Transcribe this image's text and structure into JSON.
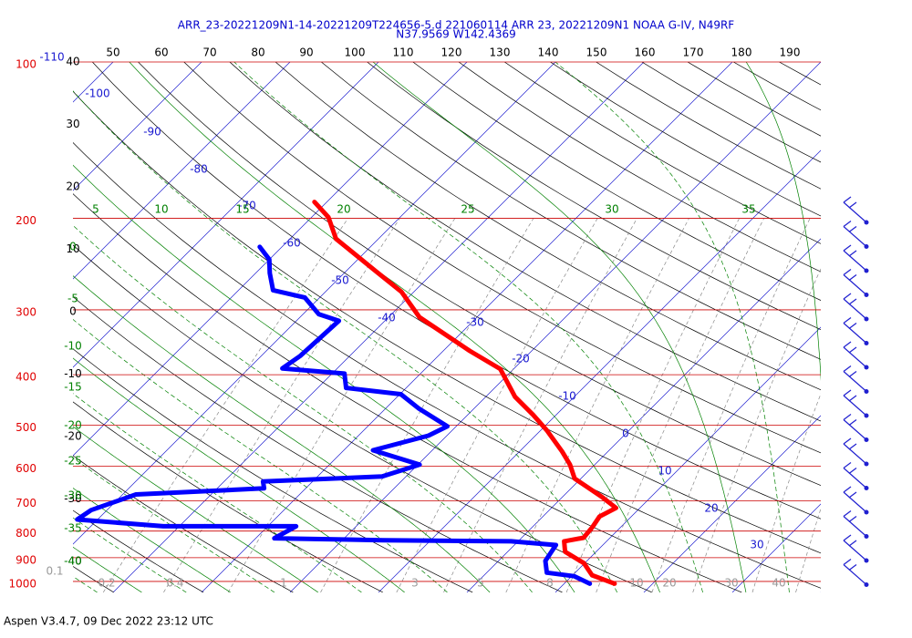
{
  "chart_data": {
    "type": "skew-t",
    "title": "ARR_23-20221209N1-14-20221209T224656-5.d 221060114 ARR 23, 20221209N1 NOAA G-IV, N49RF",
    "subtitle": "N37.9569 W142.4369",
    "footer": "Aspen V3.4.7, 09 Dec 2022  23:12 UTC",
    "ylim": [
      100,
      1050
    ],
    "log_y": true,
    "yticks": [
      100,
      200,
      300,
      400,
      500,
      600,
      700,
      800,
      900,
      1000
    ],
    "top_labels": [
      50,
      60,
      70,
      80,
      90,
      100,
      110,
      120,
      130,
      140,
      150,
      160,
      170,
      180,
      190
    ],
    "left_labels": [
      40,
      30,
      20,
      10,
      0,
      -10,
      -20,
      -30,
      -40
    ],
    "isotherm_labels": [
      -110,
      -100,
      -90,
      -80,
      -70,
      -60,
      -50,
      -40,
      -30,
      -20,
      -10,
      0,
      10,
      20,
      30
    ],
    "moist_labels_left": [
      0,
      -5,
      -10,
      -15,
      -20,
      -25,
      -30,
      -35,
      -40
    ],
    "moist_labels_top": [
      5,
      10,
      15,
      20,
      25,
      30,
      35
    ],
    "mixing_labels": [
      0.1,
      0.2,
      0.4,
      1,
      3,
      5,
      8,
      10,
      20,
      30,
      40
    ],
    "series": [
      {
        "color": "#ff0000",
        "pressure": [
          1010,
          973,
          922,
          877,
          837,
          824,
          786,
          750,
          722,
          687,
          634,
          596,
          562,
          512,
          478,
          441,
          390,
          360,
          310,
          277,
          253,
          219,
          199,
          186
        ],
        "temperature": [
          15.7,
          12.2,
          9.9,
          6.5,
          5.2,
          7.0,
          6.8,
          6.4,
          7.3,
          4.4,
          -0.7,
          -2.8,
          -5.2,
          -9.3,
          -12.6,
          -16.7,
          -21.5,
          -27,
          -36.5,
          -41.4,
          -46.6,
          -54.8,
          -58.1,
          -61.4
        ]
      },
      {
        "color": "#0000ff",
        "pressure": [
          1010,
          977,
          962,
          913,
          851,
          837,
          833,
          826,
          783,
          783,
          760,
          729,
          680,
          662,
          642,
          628,
          596,
          559,
          524,
          503,
          465,
          436,
          424,
          398,
          389,
          368,
          315,
          306,
          284,
          275,
          255,
          240,
          227
        ],
        "temperature": [
          12.9,
          10.3,
          6.8,
          5.3,
          4.7,
          -0.8,
          -15.4,
          -27.9,
          -26.8,
          -41.8,
          -52.3,
          -51.8,
          -48.5,
          -34.7,
          -35.6,
          -22.7,
          -19.8,
          -26.7,
          -22.1,
          -21.0,
          -26.2,
          -29.9,
          -36.8,
          -38.6,
          -46.2,
          -45.6,
          -45.2,
          -48.2,
          -51.7,
          -56.1,
          -58.4,
          -60.0,
          -62.5
        ]
      }
    ]
  }
}
